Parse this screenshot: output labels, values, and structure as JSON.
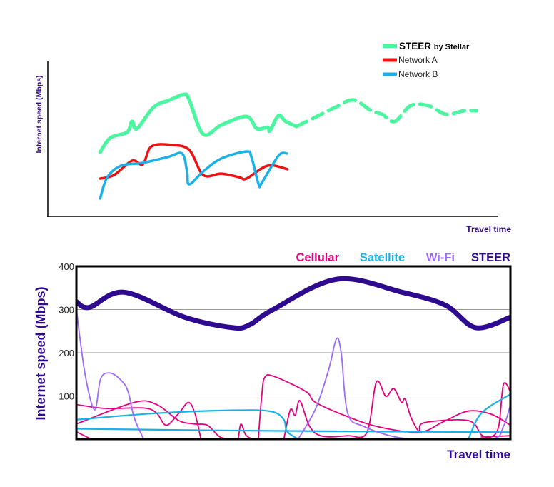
{
  "chart_data": [
    {
      "type": "line",
      "title": "",
      "xlabel": "Travel time",
      "ylabel": "Internet speed (Mbps)",
      "xlim": [
        0,
        100
      ],
      "ylim": [
        0,
        100
      ],
      "grid": false,
      "legend_placement": "top-right",
      "legend": [
        {
          "name": "STEER",
          "suffix": "by Stellar",
          "color": "#4cf5a0"
        },
        {
          "name": "Network A",
          "color": "#ee1111"
        },
        {
          "name": "Network B",
          "color": "#1ab0e8"
        }
      ],
      "series": [
        {
          "name": "STEER by Stellar",
          "color": "#4cf5a0",
          "style": "solid",
          "points": [
            [
              11.6,
              41.3
            ],
            [
              13.9,
              50.5
            ],
            [
              17.6,
              54.1
            ],
            [
              18.7,
              61.0
            ],
            [
              19.8,
              56.4
            ],
            [
              23.5,
              70.2
            ],
            [
              27.1,
              74.8
            ],
            [
              30.3,
              78.4
            ],
            [
              31.4,
              74.8
            ],
            [
              34.5,
              52.8
            ],
            [
              38.5,
              58.7
            ],
            [
              44.1,
              64.2
            ],
            [
              46.4,
              56.4
            ],
            [
              48.8,
              57.3
            ],
            [
              49.3,
              55.0
            ],
            [
              51.2,
              64.7
            ],
            [
              52.8,
              61.0
            ],
            [
              55.2,
              57.8
            ]
          ]
        },
        {
          "name": "STEER by Stellar",
          "color": "#4cf5a0",
          "style": "dashed",
          "points": [
            [
              55.2,
              57.8
            ],
            [
              59.1,
              63.3
            ],
            [
              63.9,
              70.2
            ],
            [
              67.8,
              74.8
            ],
            [
              71.8,
              67.9
            ],
            [
              74.2,
              65.6
            ],
            [
              77.0,
              61.0
            ],
            [
              80.5,
              71.1
            ],
            [
              84.5,
              71.1
            ],
            [
              88.4,
              65.6
            ],
            [
              92.4,
              67.9
            ],
            [
              95.2,
              67.9
            ]
          ]
        },
        {
          "name": "Network A",
          "color": "#ee1111",
          "style": "solid",
          "points": [
            [
              11.6,
              24.3
            ],
            [
              14.7,
              26.6
            ],
            [
              18.7,
              35.8
            ],
            [
              21.1,
              33.5
            ],
            [
              23.0,
              45.0
            ],
            [
              27.4,
              45.9
            ],
            [
              31.4,
              42.7
            ],
            [
              34.5,
              26.6
            ],
            [
              38.5,
              27.5
            ],
            [
              42.5,
              25.2
            ],
            [
              44.1,
              24.3
            ],
            [
              48.8,
              32.6
            ],
            [
              53.2,
              30.3
            ]
          ]
        },
        {
          "name": "Network B",
          "color": "#1ab0e8",
          "style": "solid",
          "points": [
            [
              11.6,
              11.5
            ],
            [
              13.2,
              25.2
            ],
            [
              16.3,
              32.6
            ],
            [
              21.1,
              34.4
            ],
            [
              26.6,
              38.1
            ],
            [
              29.8,
              40.4
            ],
            [
              30.9,
              28.9
            ],
            [
              31.4,
              20.6
            ],
            [
              34.5,
              28.9
            ],
            [
              38.5,
              37.2
            ],
            [
              44.1,
              41.7
            ],
            [
              45.2,
              38.1
            ],
            [
              46.8,
              20.6
            ],
            [
              47.5,
              21.6
            ],
            [
              51.2,
              39.0
            ],
            [
              53.1,
              40.4
            ]
          ]
        }
      ]
    },
    {
      "type": "line",
      "title": "",
      "xlabel": "Travel time",
      "ylabel": "Internet speed (Mbps)",
      "xlim": [
        0,
        100
      ],
      "ylim": [
        0,
        400
      ],
      "yticks": [
        "400",
        "300",
        "200",
        "100"
      ],
      "grid": true,
      "legend_placement": "top-right",
      "legend": [
        {
          "name": "Cellular",
          "color": "#e6007e"
        },
        {
          "name": "Satellite",
          "color": "#1ab0e8"
        },
        {
          "name": "Wi-Fi",
          "color": "#9b6bff"
        },
        {
          "name": "STEER",
          "color": "#2e0a8f"
        }
      ],
      "series": [
        {
          "name": "Cellular",
          "color": "#e6007e",
          "points": [
            [
              0,
              80
            ],
            [
              6.7,
              71
            ],
            [
              15.5,
              72
            ],
            [
              18.5,
              60
            ],
            [
              20.7,
              32
            ],
            [
              23.6,
              60
            ],
            [
              25.8,
              85
            ],
            [
              27.3,
              60
            ],
            [
              28.7,
              0
            ]
          ]
        },
        {
          "name": "Cellular",
          "color": "#e6007e",
          "points": [
            [
              0,
              35
            ],
            [
              13.3,
              85
            ],
            [
              18.5,
              80
            ],
            [
              23.6,
              43
            ],
            [
              27.3,
              35
            ],
            [
              30.2,
              32
            ],
            [
              33.1,
              5
            ],
            [
              36.1,
              0
            ],
            [
              37.2,
              0
            ],
            [
              37.9,
              35
            ],
            [
              39,
              10
            ],
            [
              40.5,
              0
            ]
          ]
        },
        {
          "name": "Cellular",
          "color": "#e6007e",
          "points": [
            [
              0,
              17
            ],
            [
              3.4,
              0
            ]
          ]
        },
        {
          "name": "Cellular",
          "color": "#e6007e",
          "points": [
            [
              41.9,
              0
            ],
            [
              42.7,
              100
            ],
            [
              43.4,
              143
            ],
            [
              45.6,
              145
            ],
            [
              52.9,
              110
            ],
            [
              55.1,
              85
            ],
            [
              62.5,
              52
            ],
            [
              69.8,
              28
            ],
            [
              79,
              16
            ],
            [
              84.5,
              40
            ],
            [
              90.3,
              65
            ],
            [
              95.5,
              58
            ],
            [
              100,
              32
            ]
          ]
        },
        {
          "name": "Cellular",
          "color": "#e6007e",
          "points": [
            [
              47.8,
              0
            ],
            [
              49.3,
              68
            ],
            [
              50.4,
              55
            ],
            [
              51.5,
              89
            ],
            [
              53.7,
              30
            ],
            [
              56.6,
              7
            ],
            [
              62.5,
              8
            ],
            [
              66.9,
              15
            ],
            [
              69.1,
              132
            ],
            [
              71.3,
              99
            ],
            [
              73.1,
              117
            ],
            [
              74.9,
              85
            ],
            [
              75.7,
              93
            ],
            [
              77.1,
              50
            ],
            [
              79,
              18
            ],
            [
              80.1,
              38
            ],
            [
              90.3,
              43
            ],
            [
              93.3,
              10
            ],
            [
              95.5,
              5
            ],
            [
              97.3,
              30
            ],
            [
              98.4,
              127
            ],
            [
              100,
              110
            ]
          ]
        },
        {
          "name": "Cellular",
          "color": "#e6007e",
          "points": [
            [
              93.3,
              5
            ],
            [
              100,
              8
            ]
          ]
        },
        {
          "name": "Satellite",
          "color": "#1ab0e8",
          "points": [
            [
              0,
              45
            ],
            [
              18.5,
              60
            ],
            [
              36.8,
              67
            ],
            [
              44.9,
              64
            ],
            [
              47.8,
              45
            ],
            [
              48.5,
              18
            ],
            [
              51.1,
              0
            ]
          ]
        },
        {
          "name": "Satellite",
          "color": "#1ab0e8",
          "points": [
            [
              90.3,
              0
            ],
            [
              93.3,
              60
            ],
            [
              100,
              104
            ]
          ]
        },
        {
          "name": "Satellite",
          "color": "#1ab0e8",
          "points": [
            [
              0,
              24
            ],
            [
              33.1,
              20
            ],
            [
              100,
              16
            ]
          ]
        },
        {
          "name": "Wi-Fi",
          "color": "#9b6bff",
          "points": [
            [
              0,
              300
            ],
            [
              2,
              150
            ],
            [
              4.2,
              68
            ],
            [
              5.6,
              140
            ],
            [
              7.8,
              153
            ],
            [
              10.4,
              135
            ],
            [
              11.9,
              110
            ],
            [
              13.3,
              50
            ],
            [
              15.5,
              0
            ]
          ]
        },
        {
          "name": "Wi-Fi",
          "color": "#9b6bff",
          "points": [
            [
              51.1,
              0
            ],
            [
              55.1,
              70
            ],
            [
              58.1,
              160
            ],
            [
              59.9,
              232
            ],
            [
              61,
              200
            ],
            [
              62.5,
              60
            ],
            [
              66.1,
              30
            ],
            [
              73.5,
              5
            ],
            [
              80.8,
              0
            ],
            [
              95.5,
              0
            ],
            [
              98.4,
              30
            ],
            [
              100,
              80
            ]
          ]
        },
        {
          "name": "STEER",
          "color": "#2e0a8f",
          "points": [
            [
              0,
              318
            ],
            [
              3,
              305
            ],
            [
              11,
              340
            ],
            [
              25,
              282
            ],
            [
              36,
              258
            ],
            [
              40,
              265
            ],
            [
              45,
              298
            ],
            [
              60,
              370
            ],
            [
              75,
              340
            ],
            [
              85,
              310
            ],
            [
              92,
              258
            ],
            [
              100,
              282
            ]
          ]
        }
      ]
    }
  ]
}
